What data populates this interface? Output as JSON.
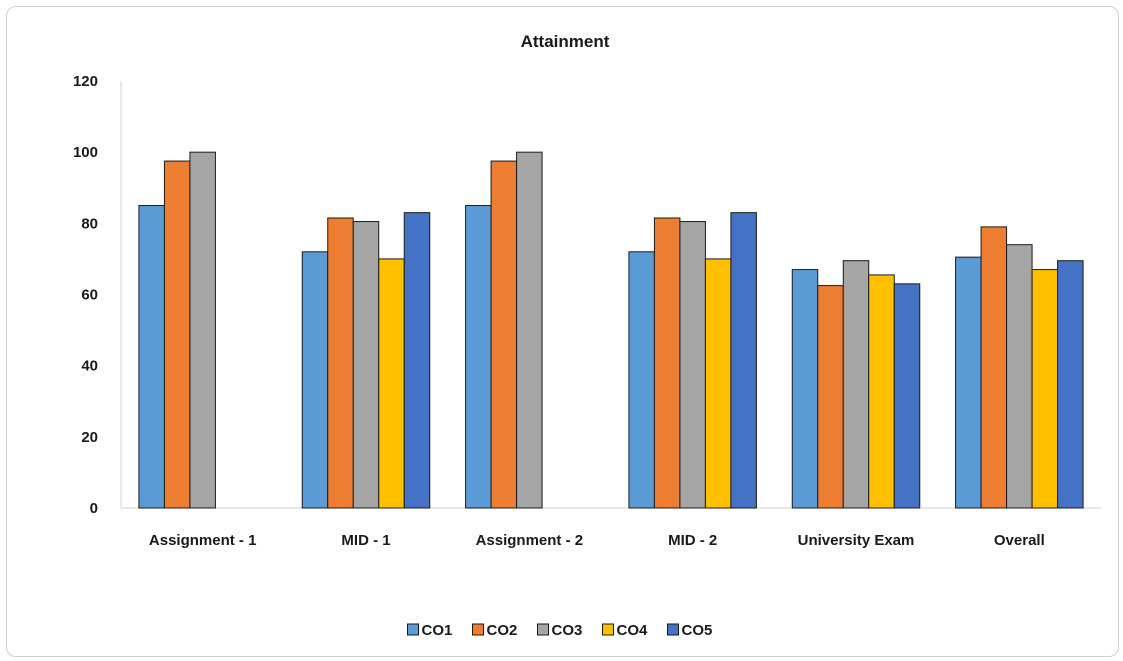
{
  "chart_data": {
    "type": "bar",
    "title": "Attainment",
    "xlabel": "",
    "ylabel": "",
    "ylim": [
      0,
      120
    ],
    "yticks": [
      0,
      20,
      40,
      60,
      80,
      100,
      120
    ],
    "grid": false,
    "legend_position": "bottom",
    "categories": [
      "Assignment - 1",
      "MID - 1",
      "Assignment - 2",
      "MID - 2",
      "University Exam",
      "Overall"
    ],
    "series": [
      {
        "name": "CO1",
        "color": "#5b9bd5",
        "values": [
          85,
          72,
          85,
          72,
          67,
          70.5
        ]
      },
      {
        "name": "CO2",
        "color": "#ed7d31",
        "values": [
          97.5,
          81.5,
          97.5,
          81.5,
          62.5,
          79
        ]
      },
      {
        "name": "CO3",
        "color": "#a5a5a5",
        "values": [
          100,
          80.5,
          100,
          80.5,
          69.5,
          74
        ]
      },
      {
        "name": "CO4",
        "color": "#ffc000",
        "values": [
          null,
          70,
          null,
          70,
          65.5,
          67
        ]
      },
      {
        "name": "CO5",
        "color": "#4472c4",
        "values": [
          null,
          83,
          null,
          83,
          63,
          69.5
        ]
      }
    ]
  }
}
